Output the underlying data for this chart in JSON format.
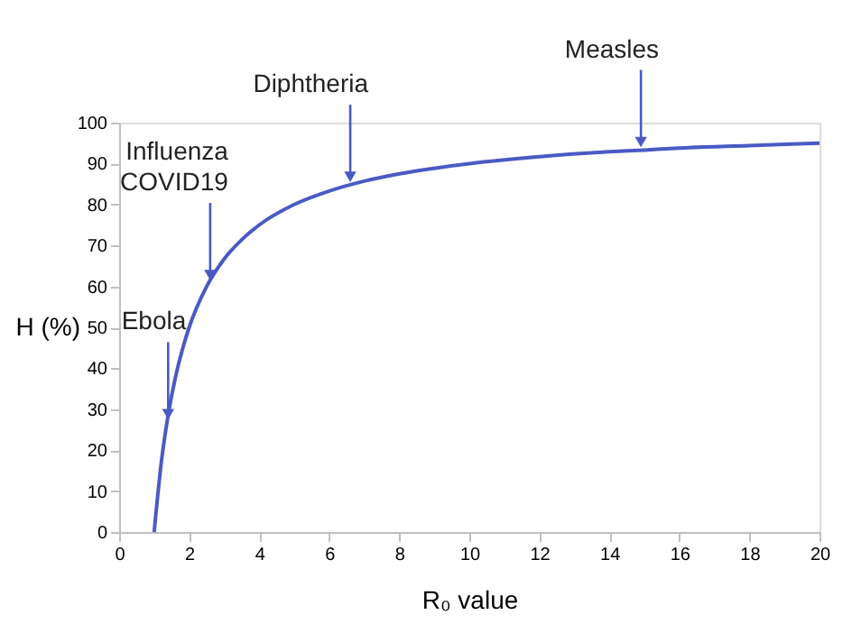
{
  "chart_data": {
    "type": "line",
    "xlabel": "R₀ value",
    "ylabel": "H (%)",
    "x": [
      1,
      1.2,
      1.4,
      1.6,
      1.8,
      2,
      2.5,
      3,
      3.5,
      4,
      5,
      6,
      7,
      8,
      10,
      12,
      14,
      15,
      16,
      18,
      20
    ],
    "series": [
      {
        "color": "#4a5ac4",
        "values": [
          0,
          16.7,
          28.6,
          37.5,
          44.4,
          50,
          60,
          66.7,
          71.4,
          75,
          80,
          83.3,
          85.7,
          87.5,
          90,
          91.7,
          92.9,
          93.3,
          93.8,
          94.4,
          95
        ]
      }
    ],
    "xlim": [
      0,
      20
    ],
    "xticks": [
      0,
      2,
      4,
      6,
      8,
      10,
      12,
      14,
      16,
      18,
      20
    ],
    "ylim": [
      0,
      100
    ],
    "yticks": [
      0,
      10,
      20,
      30,
      40,
      50,
      60,
      70,
      80,
      90,
      100
    ],
    "grid": false,
    "marker": "none",
    "line_style": "solid",
    "annotations": [
      {
        "text": "Ebola",
        "x": 1.4,
        "y": 27
      },
      {
        "text": "Influenza\nCOVID19",
        "x": 2.6,
        "y": 61
      },
      {
        "text": "Diphtheria",
        "x": 6.6,
        "y": 85
      },
      {
        "text": "Measles",
        "x": 14.9,
        "y": 93.5
      }
    ]
  }
}
